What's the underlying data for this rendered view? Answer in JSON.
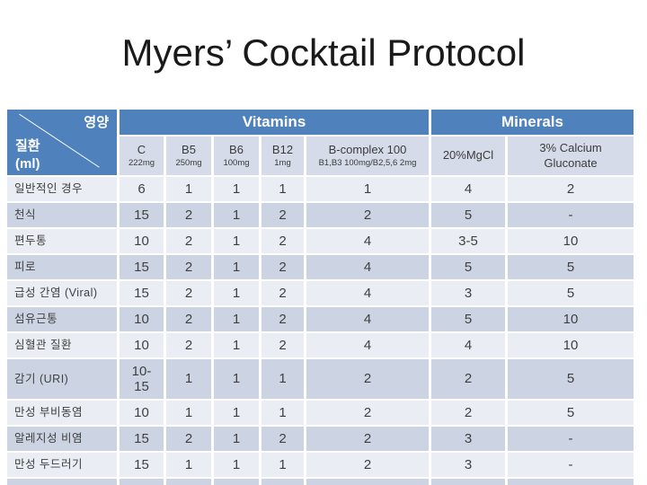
{
  "slide": {
    "title": "Myers’ Cocktail Protocol"
  },
  "colors": {
    "hdr": "#4f81bd",
    "sub": "#d5dbe8",
    "light": "#eaedf4",
    "dark": "#ccd4e3",
    "txt": "#3f3f3f",
    "title": "#1a1a1a"
  },
  "table": {
    "corner": {
      "top_right": "영양",
      "bottom_left": "질환",
      "unit": "(ml)"
    },
    "groups": [
      {
        "label": "Vitamins",
        "span": 5
      },
      {
        "label": "Minerals",
        "span": 2
      }
    ],
    "columns": [
      {
        "name": "C",
        "sub": "222mg"
      },
      {
        "name": "B5",
        "sub": "250mg"
      },
      {
        "name": "B6",
        "sub": "100mg"
      },
      {
        "name": "B12",
        "sub": "1mg"
      },
      {
        "name": "B-complex 100",
        "sub": "B1,B3 100mg/B2,5,6  2mg"
      },
      {
        "name": "20%MgCl",
        "sub": ""
      },
      {
        "name": "3% Calcium\nGluconate",
        "sub": ""
      }
    ],
    "rows": [
      {
        "label": "일반적인 경우",
        "values": [
          "6",
          "1",
          "1",
          "1",
          "1",
          "4",
          "2"
        ]
      },
      {
        "label": "천식",
        "values": [
          "15",
          "2",
          "1",
          "2",
          "2",
          "5",
          "-"
        ]
      },
      {
        "label": "편두통",
        "values": [
          "10",
          "2",
          "1",
          "2",
          "4",
          "3-5",
          "10"
        ]
      },
      {
        "label": "피로",
        "values": [
          "15",
          "2",
          "1",
          "2",
          "4",
          "5",
          "5"
        ]
      },
      {
        "label": "급성 간염 (Viral)",
        "values": [
          "15",
          "2",
          "1",
          "2",
          "4",
          "3",
          "5"
        ]
      },
      {
        "label": "섬유근통",
        "values": [
          "10",
          "2",
          "1",
          "2",
          "4",
          "5",
          "10"
        ]
      },
      {
        "label": "심혈관 질환",
        "values": [
          "10",
          "2",
          "1",
          "2",
          "4",
          "4",
          "10"
        ]
      },
      {
        "label": "감기 (URI)",
        "values": [
          "10-\n15",
          "1",
          "1",
          "1",
          "2",
          "2",
          "5"
        ]
      },
      {
        "label": "만성 부비동염",
        "values": [
          "10",
          "1",
          "1",
          "1",
          "2",
          "2",
          "5"
        ]
      },
      {
        "label": "알레지성 비염",
        "values": [
          "15",
          "2",
          "1",
          "2",
          "2",
          "3",
          "-"
        ]
      },
      {
        "label": "만성 두드러기",
        "values": [
          "15",
          "1",
          "1",
          "1",
          "2",
          "3",
          "-"
        ]
      },
      {
        "label": "",
        "values": [
          "",
          "",
          "",
          "",
          "",
          "",
          ""
        ]
      }
    ]
  }
}
